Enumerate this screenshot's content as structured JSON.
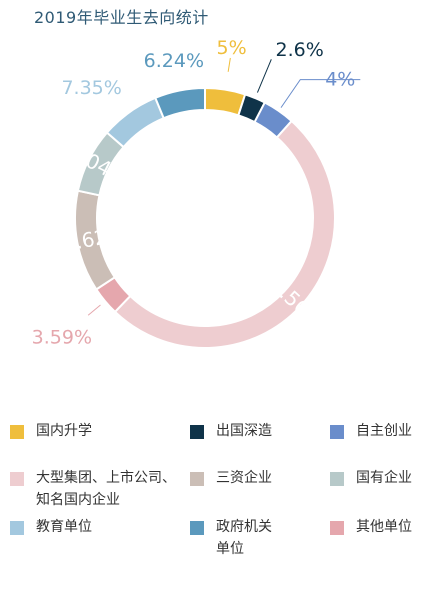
{
  "title": "2019年毕业生去向统计",
  "chart_data": {
    "type": "pie",
    "donut": true,
    "title": "2019年毕业生去向统计",
    "legend_position": "bottom",
    "slices": [
      {
        "name": "国内升学",
        "value": 5,
        "label": "5%",
        "color": "#efbe3c"
      },
      {
        "name": "出国深造",
        "value": 2.6,
        "label": "2.6%",
        "color": "#0f3349"
      },
      {
        "name": "自主创业",
        "value": 4,
        "label": "4%",
        "color": "#6a8dcb"
      },
      {
        "name": "大型集团、上市公司、\n知名国内企业",
        "value": 50.56,
        "label": "50.56%",
        "color": "#eecdd0"
      },
      {
        "name": "其他单位",
        "value": 3.59,
        "label": "3.59%",
        "color": "#e5a7ad"
      },
      {
        "name": "三资企业",
        "value": 12.62,
        "label": "12.62%",
        "color": "#cbbeb6"
      },
      {
        "name": "国有企业",
        "value": 8.04,
        "label": "8.04%",
        "color": "#b7c9c9"
      },
      {
        "name": "教育单位",
        "value": 7.35,
        "label": "7.35%",
        "color": "#a3c8df"
      },
      {
        "name": "政府机关\n单位",
        "value": 6.24,
        "label": "6.24%",
        "color": "#5b99bd"
      }
    ]
  },
  "legend_order": [
    "国内升学",
    "出国深造",
    "自主创业",
    "大型集团、上市公司、\n知名国内企业",
    "三资企业",
    "国有企业",
    "教育单位",
    "政府机关\n单位",
    "其他单位"
  ]
}
